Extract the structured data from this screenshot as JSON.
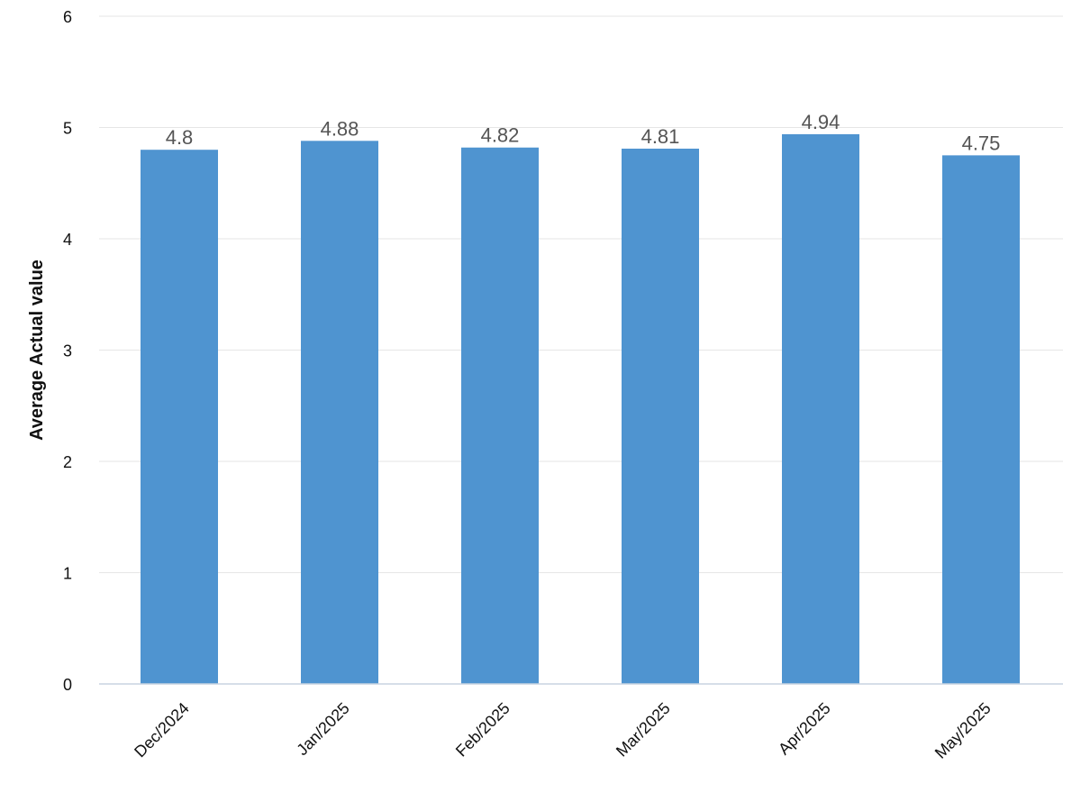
{
  "chart_data": {
    "type": "bar",
    "title": "",
    "xlabel": "",
    "ylabel": "Average Actual value",
    "categories": [
      "Dec/2024",
      "Jan/2025",
      "Feb/2025",
      "Mar/2025",
      "Apr/2025",
      "May/2025"
    ],
    "values": [
      4.8,
      4.88,
      4.82,
      4.81,
      4.94,
      4.75
    ],
    "value_labels": [
      "4.8",
      "4.88",
      "4.82",
      "4.81",
      "4.94",
      "4.75"
    ],
    "ylim": [
      0,
      6
    ],
    "yticks": [
      0,
      1,
      2,
      3,
      4,
      5,
      6
    ],
    "grid": true,
    "legend": "none",
    "bar_color": "#4f94d0"
  }
}
